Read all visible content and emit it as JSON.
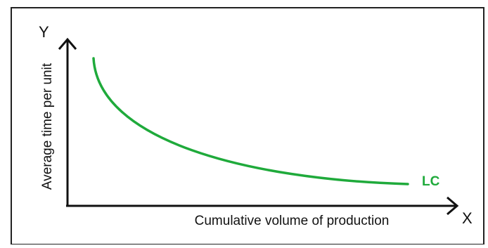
{
  "diagram": {
    "y_axis_letter": "Y",
    "x_axis_letter": "X",
    "y_axis_label": "Average time per unit",
    "x_axis_label": "Cumulative volume of production",
    "curve_label": "LC",
    "curve_color": "#1faa3b",
    "axis_color": "#111111",
    "frame_color": "#222222"
  }
}
